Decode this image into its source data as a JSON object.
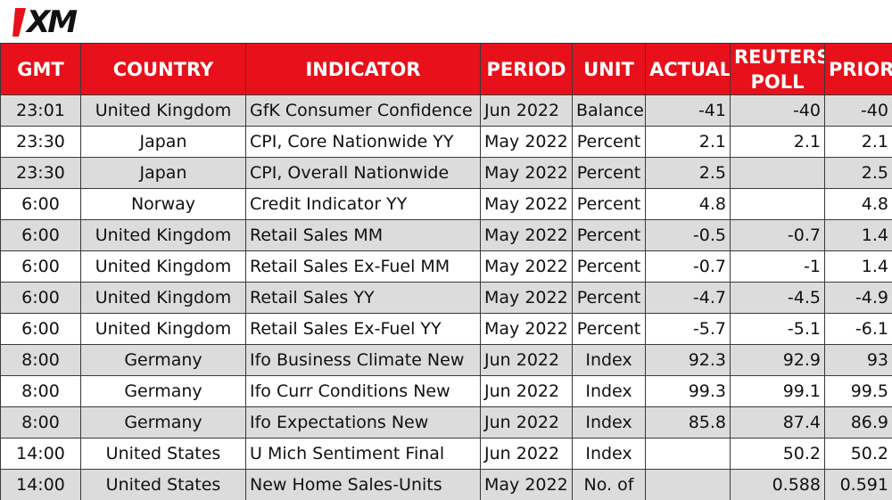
{
  "brand": {
    "logo_text": "XM",
    "accent_color": "#e8101a"
  },
  "table": {
    "headers": {
      "gmt": "GMT",
      "country": "COUNTRY",
      "indicator": "INDICATOR",
      "period": "PERIOD",
      "unit": "UNIT",
      "actual": "ACTUAL",
      "reuters_poll_line1": "REUTERS",
      "reuters_poll_line2": "POLL",
      "prior": "PRIOR"
    },
    "rows": [
      {
        "gmt": "23:01",
        "country": "United Kingdom",
        "indicator": "GfK Consumer Confidence",
        "period": "Jun 2022",
        "unit": "Balance",
        "actual": "-41",
        "poll": "-40",
        "prior": "-40"
      },
      {
        "gmt": "23:30",
        "country": "Japan",
        "indicator": "CPI, Core Nationwide YY",
        "period": "May 2022",
        "unit": "Percent",
        "actual": "2.1",
        "poll": "2.1",
        "prior": "2.1"
      },
      {
        "gmt": "23:30",
        "country": "Japan",
        "indicator": "CPI, Overall Nationwide",
        "period": "May 2022",
        "unit": "Percent",
        "actual": "2.5",
        "poll": "",
        "prior": "2.5"
      },
      {
        "gmt": "6:00",
        "country": "Norway",
        "indicator": "Credit Indicator YY",
        "period": "May 2022",
        "unit": "Percent",
        "actual": "4.8",
        "poll": "",
        "prior": "4.8"
      },
      {
        "gmt": "6:00",
        "country": "United Kingdom",
        "indicator": "Retail Sales MM",
        "period": "May 2022",
        "unit": "Percent",
        "actual": "-0.5",
        "poll": "-0.7",
        "prior": "1.4"
      },
      {
        "gmt": "6:00",
        "country": "United Kingdom",
        "indicator": "Retail Sales Ex-Fuel MM",
        "period": "May 2022",
        "unit": "Percent",
        "actual": "-0.7",
        "poll": "-1",
        "prior": "1.4"
      },
      {
        "gmt": "6:00",
        "country": "United Kingdom",
        "indicator": "Retail Sales YY",
        "period": "May 2022",
        "unit": "Percent",
        "actual": "-4.7",
        "poll": "-4.5",
        "prior": "-4.9"
      },
      {
        "gmt": "6:00",
        "country": "United Kingdom",
        "indicator": "Retail Sales Ex-Fuel YY",
        "period": "May 2022",
        "unit": "Percent",
        "actual": "-5.7",
        "poll": "-5.1",
        "prior": "-6.1"
      },
      {
        "gmt": "8:00",
        "country": "Germany",
        "indicator": "Ifo Business Climate New",
        "period": "Jun 2022",
        "unit": "Index",
        "actual": "92.3",
        "poll": "92.9",
        "prior": "93"
      },
      {
        "gmt": "8:00",
        "country": "Germany",
        "indicator": "Ifo Curr Conditions New",
        "period": "Jun 2022",
        "unit": "Index",
        "actual": "99.3",
        "poll": "99.1",
        "prior": "99.5"
      },
      {
        "gmt": "8:00",
        "country": "Germany",
        "indicator": "Ifo Expectations New",
        "period": "Jun 2022",
        "unit": "Index",
        "actual": "85.8",
        "poll": "87.4",
        "prior": "86.9"
      },
      {
        "gmt": "14:00",
        "country": "United States",
        "indicator": "U Mich Sentiment Final",
        "period": "Jun 2022",
        "unit": "Index",
        "actual": "",
        "poll": "50.2",
        "prior": "50.2"
      },
      {
        "gmt": "14:00",
        "country": "United States",
        "indicator": "New Home Sales-Units",
        "period": "May 2022",
        "unit": "No. of",
        "actual": "",
        "poll": "0.588",
        "prior": "0.591"
      }
    ]
  }
}
